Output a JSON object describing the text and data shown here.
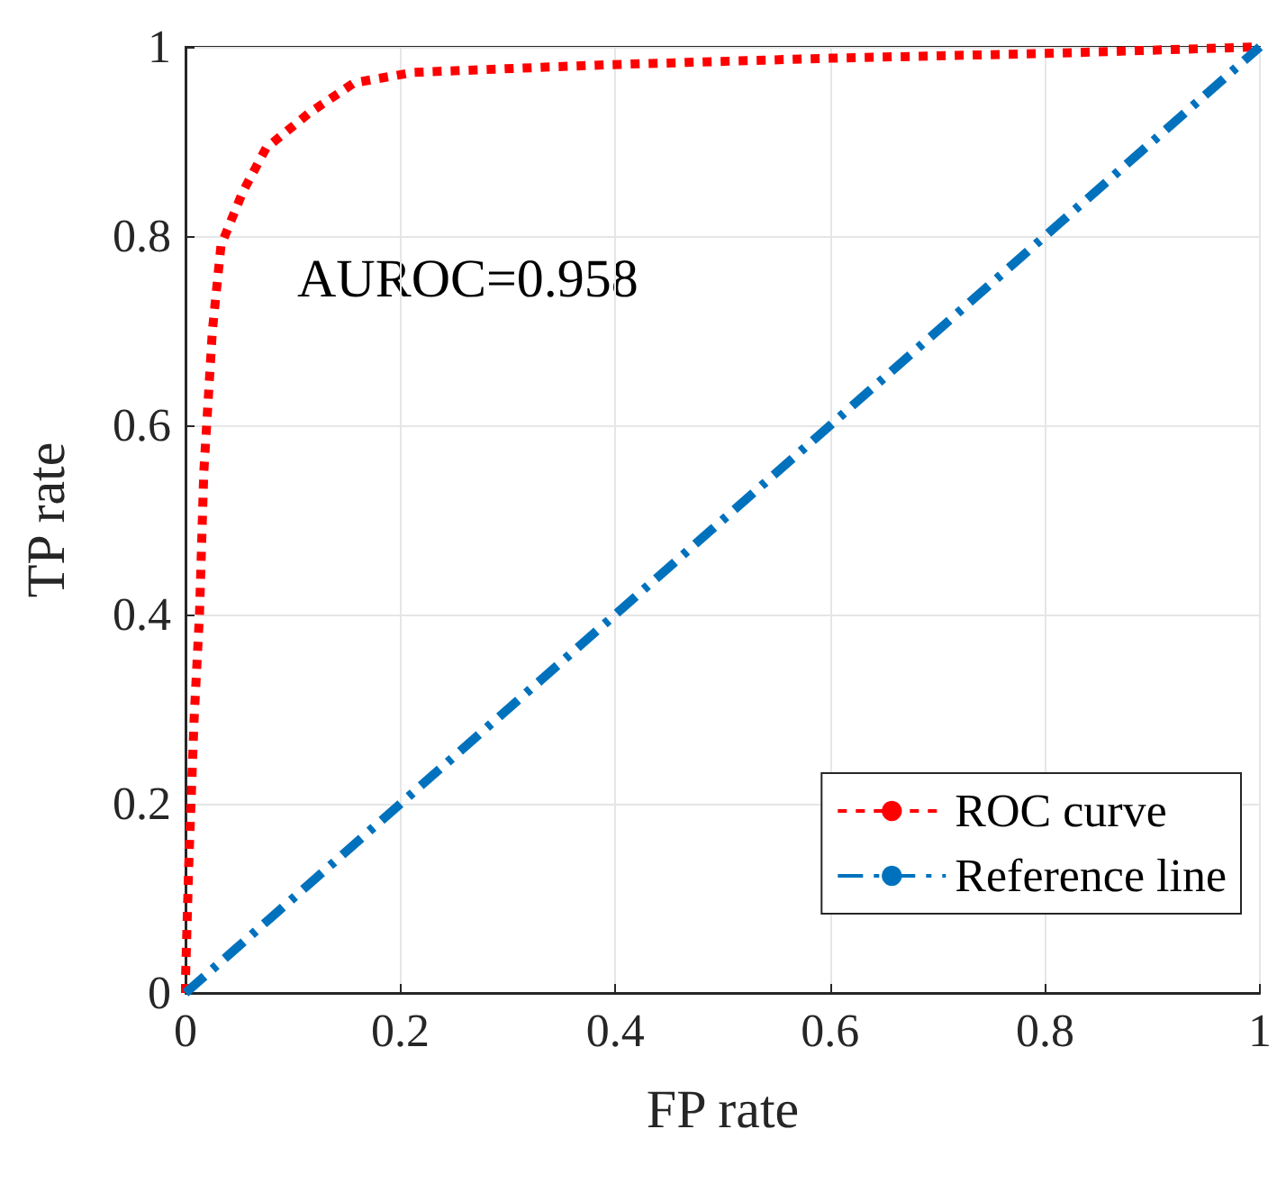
{
  "chart_data": {
    "type": "line",
    "xlabel": "FP rate",
    "ylabel": "TP rate",
    "annotations": [
      "AUROC=0.958"
    ],
    "xlim": [
      0,
      1
    ],
    "ylim": [
      0,
      1
    ],
    "xticks": [
      0,
      0.2,
      0.4,
      0.6,
      0.8,
      1
    ],
    "yticks": [
      0,
      0.2,
      0.4,
      0.6,
      0.8,
      1
    ],
    "grid": true,
    "legend": "bottom right",
    "marker": "none",
    "series": [
      {
        "name": "ROC curve",
        "color": "#ff0000",
        "line_style": "dotted",
        "x": [
          0,
          0,
          0.003,
          0.008,
          0.013,
          0.017,
          0.025,
          0.033,
          0.053,
          0.075,
          0.115,
          0.157,
          0.212,
          0.39,
          0.6,
          0.8,
          1
        ],
        "values": [
          0,
          0.015,
          0.135,
          0.29,
          0.4,
          0.55,
          0.7,
          0.79,
          0.846,
          0.893,
          0.93,
          0.962,
          0.973,
          0.981,
          0.988,
          0.993,
          1
        ]
      },
      {
        "name": "Reference line",
        "color": "#0072bd",
        "line_style": "dashed",
        "x": [
          0,
          1
        ],
        "values": [
          0,
          1
        ]
      }
    ]
  }
}
